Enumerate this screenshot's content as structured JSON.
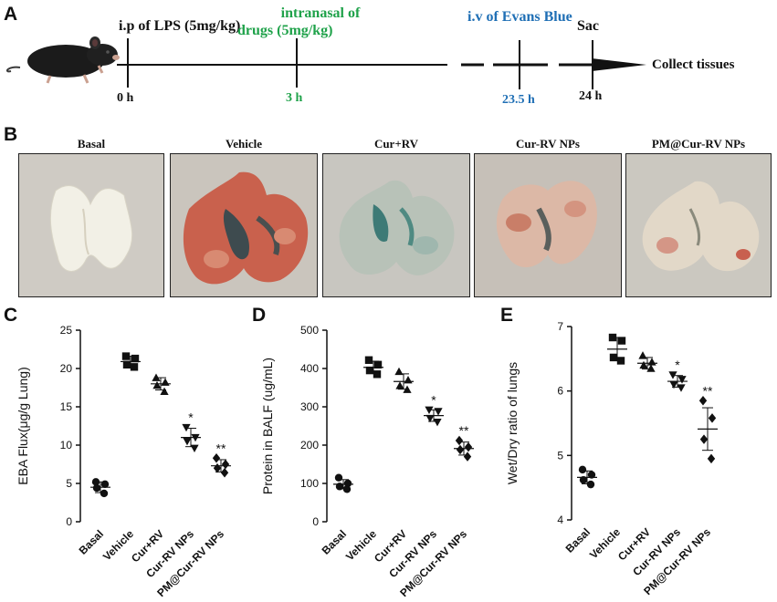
{
  "panels": {
    "a": "A",
    "b": "B",
    "c": "C",
    "d": "D",
    "e": "E"
  },
  "timeline": {
    "lps_label": "i.p of LPS (5mg/kg)",
    "intranasal_label_line1": "intranasal of",
    "intranasal_label_line2": "drugs (5mg/kg)",
    "evans_label": "i.v of Evans Blue",
    "sac_label": "Sac",
    "end_label": "Collect tissues",
    "t0": "0 h",
    "t3": "3 h",
    "t235": "23.5 h",
    "t24": "24 h",
    "colors": {
      "green": "#1fa24a",
      "blue": "#1f6fb5",
      "black": "#111111"
    }
  },
  "photos": [
    {
      "label": "Basal"
    },
    {
      "label": "Vehicle"
    },
    {
      "label": "Cur+RV"
    },
    {
      "label": "Cur-RV NPs"
    },
    {
      "label": "PM@Cur-RV NPs"
    }
  ],
  "chart_data": [
    {
      "type": "scatter",
      "title": "",
      "ylabel": "EBA Flux(μg/g Lung)",
      "xlabel": "",
      "ylim": [
        0,
        25
      ],
      "yticks": [
        "0",
        "5",
        "10",
        "15",
        "20",
        "25"
      ],
      "categories": [
        "Basal",
        "Vehicle",
        "Cur+RV",
        "Cur-RV NPs",
        "PM@Cur-RV NPs"
      ],
      "markers": [
        "circle",
        "square",
        "triangle-up",
        "triangle-down",
        "diamond"
      ],
      "series": [
        {
          "name": "Basal",
          "values": [
            5.2,
            4.9,
            4.4,
            3.7
          ],
          "mean": 4.5,
          "sd": 0.7,
          "sig": ""
        },
        {
          "name": "Vehicle",
          "values": [
            21.6,
            21.3,
            20.5,
            20.2
          ],
          "mean": 20.9,
          "sd": 0.7,
          "sig": ""
        },
        {
          "name": "Cur+RV",
          "values": [
            18.8,
            18.2,
            17.8,
            17.0
          ],
          "mean": 18.0,
          "sd": 0.8,
          "sig": ""
        },
        {
          "name": "Cur-RV NPs",
          "values": [
            12.3,
            11.0,
            10.5,
            9.6
          ],
          "mean": 11.0,
          "sd": 1.2,
          "sig": "*"
        },
        {
          "name": "PM@Cur-RV NPs",
          "values": [
            8.3,
            7.5,
            7.0,
            6.4
          ],
          "mean": 7.3,
          "sd": 0.8,
          "sig": "**"
        }
      ]
    },
    {
      "type": "scatter",
      "title": "",
      "ylabel": "Protein in BALF (ug/mL)",
      "xlabel": "",
      "ylim": [
        0,
        500
      ],
      "yticks": [
        "0",
        "100",
        "200",
        "300",
        "400",
        "500"
      ],
      "categories": [
        "Basal",
        "Vehicle",
        "Cur+RV",
        "Cur-RV NPs",
        "PM@Cur-RV NPs"
      ],
      "markers": [
        "circle",
        "square",
        "triangle-up",
        "triangle-down",
        "diamond"
      ],
      "series": [
        {
          "name": "Basal",
          "values": [
            115,
            100,
            92,
            85
          ],
          "mean": 98,
          "sd": 12,
          "sig": ""
        },
        {
          "name": "Vehicle",
          "values": [
            422,
            410,
            395,
            385
          ],
          "mean": 403,
          "sd": 16,
          "sig": ""
        },
        {
          "name": "Cur+RV",
          "values": [
            392,
            370,
            355,
            345
          ],
          "mean": 366,
          "sd": 20,
          "sig": ""
        },
        {
          "name": "Cur-RV NPs",
          "values": [
            292,
            288,
            270,
            260
          ],
          "mean": 277,
          "sd": 15,
          "sig": "*"
        },
        {
          "name": "PM@Cur-RV NPs",
          "values": [
            212,
            195,
            188,
            170
          ],
          "mean": 191,
          "sd": 17,
          "sig": "**"
        }
      ]
    },
    {
      "type": "scatter",
      "title": "",
      "ylabel": "Wet/Dry ratio of lungs",
      "xlabel": "",
      "ylim": [
        4,
        7
      ],
      "yticks": [
        "4",
        "5",
        "6",
        "7"
      ],
      "categories": [
        "Basal",
        "Vehicle",
        "Cur+RV",
        "Cur-RV NPs",
        "PM@Cur-RV NPs"
      ],
      "markers": [
        "circle",
        "square",
        "triangle-up",
        "triangle-down",
        "diamond"
      ],
      "series": [
        {
          "name": "Basal",
          "values": [
            4.78,
            4.7,
            4.62,
            4.55
          ],
          "mean": 4.66,
          "sd": 0.1,
          "sig": ""
        },
        {
          "name": "Vehicle",
          "values": [
            6.83,
            6.78,
            6.52,
            6.47
          ],
          "mean": 6.65,
          "sd": 0.18,
          "sig": ""
        },
        {
          "name": "Cur+RV",
          "values": [
            6.55,
            6.45,
            6.4,
            6.35
          ],
          "mean": 6.43,
          "sd": 0.09,
          "sig": ""
        },
        {
          "name": "Cur-RV NPs",
          "values": [
            6.25,
            6.18,
            6.1,
            6.05
          ],
          "mean": 6.15,
          "sd": 0.09,
          "sig": "*"
        },
        {
          "name": "PM@Cur-RV NPs",
          "values": [
            5.85,
            5.58,
            5.25,
            4.95
          ],
          "mean": 5.41,
          "sd": 0.33,
          "sig": "**"
        }
      ]
    }
  ]
}
